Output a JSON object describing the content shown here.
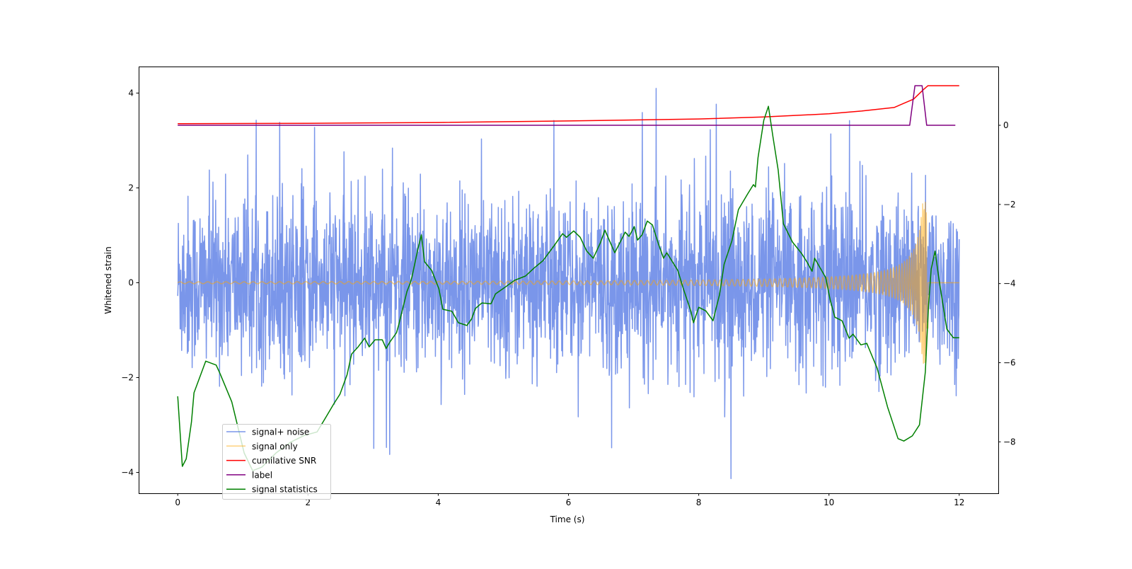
{
  "chart_data": {
    "type": "line",
    "xlabel": "Time (s)",
    "ylabel": "Whitened strain",
    "xlim": [
      -0.6,
      12.6
    ],
    "ylim_left": [
      -4.44,
      4.56
    ],
    "ylim_right": [
      -9.3,
      1.485
    ],
    "xticks": [
      0,
      2,
      4,
      6,
      8,
      10,
      12
    ],
    "xtick_labels": [
      "0",
      "2",
      "4",
      "6",
      "8",
      "10",
      "12"
    ],
    "yticks_left": [
      -4,
      -2,
      0,
      2,
      4
    ],
    "ytick_labels_left": [
      "−4",
      "−2",
      "0",
      "2",
      "4"
    ],
    "yticks_right": [
      -8,
      -6,
      -4,
      -2,
      0
    ],
    "ytick_labels_right": [
      "−8",
      "−6",
      "−4",
      "−2",
      "0"
    ],
    "grid": false,
    "legend_position": "lower-left",
    "series": [
      {
        "name": "signal+ noise",
        "axis": "left",
        "color": "#4169e1",
        "alpha": 0.7,
        "kind": "noise",
        "x_range": [
          0,
          12
        ],
        "n_samples": 2600,
        "std": 0.9,
        "spike_max": 4.15
      },
      {
        "name": "signal only",
        "axis": "left",
        "color": "#ffa500",
        "alpha": 0.5,
        "kind": "chirp",
        "x_range": [
          0,
          11.52
        ],
        "amp_start": 0.02,
        "amp_peak": 1.7,
        "f_start": 7,
        "tc": 11.52
      },
      {
        "name": "cumilative SNR",
        "axis": "right",
        "color": "#ff0000",
        "x": [
          0,
          2,
          4,
          6,
          8,
          9,
          10,
          10.5,
          11,
          11.3,
          11.45,
          11.52,
          12
        ],
        "y": [
          0.04,
          0.05,
          0.07,
          0.11,
          0.16,
          0.21,
          0.29,
          0.36,
          0.45,
          0.66,
          0.9,
          1.0,
          1.0
        ]
      },
      {
        "name": "label",
        "axis": "right",
        "color": "#800080",
        "x": [
          0,
          11.24,
          11.32,
          11.43,
          11.5,
          11.94
        ],
        "y": [
          0,
          0,
          1,
          1,
          0,
          0
        ]
      },
      {
        "name": "signal statistics",
        "axis": "right",
        "color": "#008000",
        "x": [
          0.0,
          0.07,
          0.13,
          0.21,
          0.25,
          0.43,
          0.59,
          0.65,
          0.83,
          1.02,
          1.15,
          1.29,
          1.51,
          1.73,
          1.94,
          2.14,
          2.27,
          2.4,
          2.49,
          2.6,
          2.67,
          2.77,
          2.87,
          2.94,
          3.03,
          3.14,
          3.2,
          3.26,
          3.36,
          3.39,
          3.52,
          3.57,
          3.6,
          3.68,
          3.74,
          3.79,
          3.9,
          4.01,
          4.07,
          4.21,
          4.31,
          4.44,
          4.51,
          4.57,
          4.67,
          4.81,
          4.88,
          5.02,
          5.17,
          5.34,
          5.47,
          5.61,
          5.78,
          5.91,
          5.97,
          6.08,
          6.18,
          6.28,
          6.38,
          6.49,
          6.56,
          6.61,
          6.71,
          6.81,
          6.87,
          6.93,
          7.01,
          7.06,
          7.13,
          7.21,
          7.29,
          7.38,
          7.46,
          7.51,
          7.68,
          7.76,
          7.88,
          7.92,
          8.0,
          8.11,
          8.22,
          8.32,
          8.39,
          8.51,
          8.61,
          8.75,
          8.84,
          8.87,
          8.91,
          9.0,
          9.07,
          9.14,
          9.22,
          9.3,
          9.44,
          9.58,
          9.66,
          9.74,
          9.78,
          9.95,
          10.02,
          10.09,
          10.2,
          10.31,
          10.37,
          10.49,
          10.58,
          10.74,
          10.9,
          11.06,
          11.15,
          11.28,
          11.39,
          11.48,
          11.53,
          11.57,
          11.63,
          11.69,
          11.81,
          11.91,
          12.0
        ],
        "y": [
          -6.85,
          -8.62,
          -8.43,
          -7.5,
          -6.76,
          -5.96,
          -6.06,
          -6.28,
          -6.99,
          -8.28,
          -8.73,
          -8.64,
          -8.28,
          -8.01,
          -7.84,
          -7.75,
          -7.39,
          -7.03,
          -6.8,
          -6.31,
          -5.78,
          -5.6,
          -5.38,
          -5.6,
          -5.42,
          -5.42,
          -5.64,
          -5.47,
          -5.24,
          -5.06,
          -4.2,
          -3.99,
          -3.81,
          -3.18,
          -2.77,
          -3.45,
          -3.67,
          -4.13,
          -4.65,
          -4.7,
          -4.99,
          -5.06,
          -4.9,
          -4.63,
          -4.49,
          -4.51,
          -4.26,
          -4.1,
          -3.92,
          -3.81,
          -3.61,
          -3.42,
          -3.04,
          -2.74,
          -2.83,
          -2.67,
          -2.83,
          -3.18,
          -3.36,
          -2.97,
          -2.65,
          -2.84,
          -3.22,
          -2.9,
          -2.7,
          -2.81,
          -2.56,
          -2.9,
          -2.77,
          -2.42,
          -2.52,
          -2.99,
          -3.36,
          -3.22,
          -3.67,
          -4.11,
          -4.7,
          -4.99,
          -4.6,
          -4.69,
          -4.94,
          -4.28,
          -3.51,
          -2.92,
          -2.13,
          -1.74,
          -1.5,
          -1.56,
          -0.82,
          0.13,
          0.48,
          -0.29,
          -1.13,
          -2.49,
          -2.95,
          -3.24,
          -3.45,
          -3.69,
          -3.36,
          -3.85,
          -4.42,
          -4.85,
          -4.94,
          -5.38,
          -5.28,
          -5.55,
          -5.51,
          -6.14,
          -7.12,
          -7.92,
          -7.98,
          -7.85,
          -7.57,
          -6.23,
          -4.53,
          -3.63,
          -3.18,
          -3.9,
          -5.15,
          -5.37,
          -5.37
        ]
      }
    ],
    "legend": [
      "signal+ noise",
      "signal only",
      "cumilative SNR",
      "label",
      "signal statistics"
    ]
  }
}
